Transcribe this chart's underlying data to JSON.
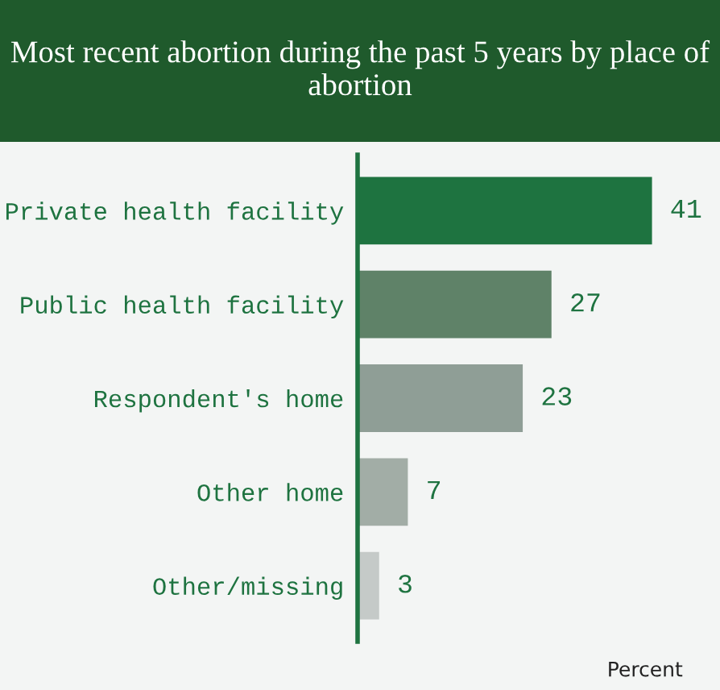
{
  "chart_data": {
    "type": "bar",
    "orientation": "horizontal",
    "title": "Most recent abortion during the past 5 years by place of abortion",
    "categories": [
      "Private health facility",
      "Public health facility",
      "Respondent's home",
      "Other home",
      "Other/missing"
    ],
    "values": [
      41,
      27,
      23,
      7,
      3
    ],
    "colors": [
      "#1e7340",
      "#5f8268",
      "#8f9e96",
      "#a2ada6",
      "#c5cac8"
    ],
    "data_labels": true,
    "xlabel": "Percent",
    "grid": false,
    "legend": false
  }
}
